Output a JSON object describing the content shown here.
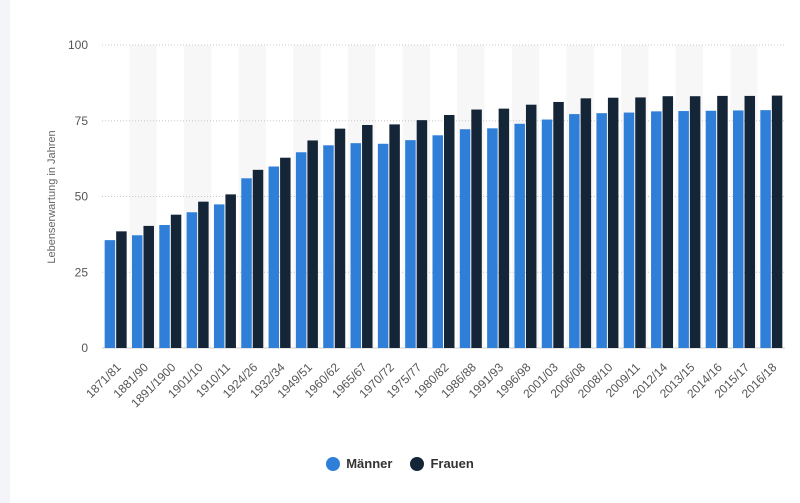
{
  "chart_data": {
    "type": "bar",
    "ylabel": "Lebenserwartung in Jahren",
    "ylim": [
      0,
      100
    ],
    "yticks": [
      0,
      25,
      50,
      75,
      100
    ],
    "grid": true,
    "legend": "bottom-center",
    "categories": [
      "1871/81",
      "1881/90",
      "1891/1900",
      "1901/10",
      "1910/11",
      "1924/26",
      "1932/34",
      "1949/51",
      "1960/62",
      "1965/67",
      "1970/72",
      "1975/77",
      "1980/82",
      "1986/88",
      "1991/93",
      "1996/98",
      "2001/03",
      "2006/08",
      "2008/10",
      "2009/11",
      "2012/14",
      "2013/15",
      "2014/16",
      "2015/17",
      "2016/18"
    ],
    "series": [
      {
        "name": "Männer",
        "color": "#2f7ed8",
        "values": [
          35.6,
          37.2,
          40.6,
          44.8,
          47.4,
          56.0,
          59.9,
          64.6,
          66.9,
          67.6,
          67.4,
          68.6,
          70.2,
          72.2,
          72.5,
          74.0,
          75.4,
          77.2,
          77.5,
          77.7,
          78.1,
          78.2,
          78.3,
          78.4,
          78.5
        ]
      },
      {
        "name": "Frauen",
        "color": "#152538",
        "values": [
          38.5,
          40.3,
          44.0,
          48.3,
          50.7,
          58.8,
          62.8,
          68.5,
          72.4,
          73.6,
          73.8,
          75.2,
          76.9,
          78.7,
          79.0,
          80.3,
          81.2,
          82.4,
          82.6,
          82.7,
          83.1,
          83.1,
          83.2,
          83.2,
          83.3
        ]
      }
    ]
  }
}
